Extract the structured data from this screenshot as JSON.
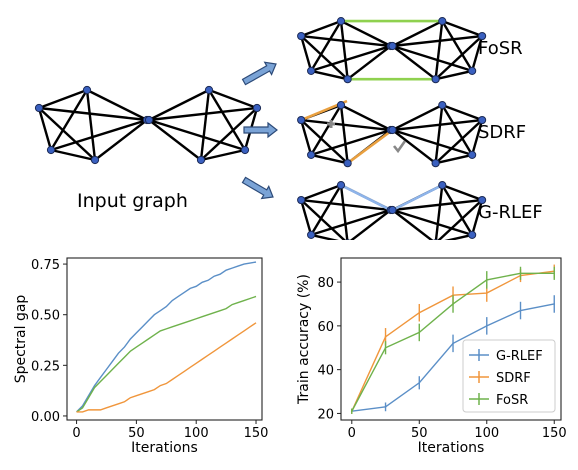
{
  "input_label": "Input graph",
  "methods": [
    {
      "key": "fosr",
      "label": "FoSR"
    },
    {
      "key": "sdrf",
      "label": "SDRF"
    },
    {
      "key": "grlef",
      "label": "G-RLEF"
    }
  ],
  "colors": {
    "blue": "#5B8FC7",
    "orange": "#F0963C",
    "green": "#6FB24C",
    "node": "#3A60C0",
    "fosr_edge": "#8FD14F",
    "sdrf_edge": "#E9A040",
    "grlef_edge": "#8EB4EA",
    "arrow": "#7AA3D6"
  },
  "chart_data": [
    {
      "type": "line",
      "xlabel": "Iterations",
      "ylabel": "Spectral gap",
      "xlim": [
        -8,
        155
      ],
      "ylim": [
        -0.02,
        0.78
      ],
      "xticks": [
        0,
        50,
        100,
        150
      ],
      "yticks": [
        0.0,
        0.25,
        0.5,
        0.75
      ],
      "xtick_labels": [
        "0",
        "50",
        "100",
        "150"
      ],
      "ytick_labels": [
        "0.00",
        "0.25",
        "0.50",
        "0.75"
      ],
      "series": [
        {
          "color_key": "blue",
          "x": [
            0,
            5,
            10,
            15,
            20,
            25,
            30,
            35,
            40,
            45,
            50,
            55,
            60,
            65,
            70,
            75,
            80,
            85,
            90,
            95,
            100,
            105,
            110,
            115,
            120,
            125,
            130,
            135,
            140,
            145,
            150
          ],
          "y": [
            0.02,
            0.05,
            0.1,
            0.15,
            0.19,
            0.23,
            0.27,
            0.31,
            0.34,
            0.38,
            0.41,
            0.44,
            0.47,
            0.5,
            0.52,
            0.54,
            0.57,
            0.59,
            0.61,
            0.63,
            0.64,
            0.66,
            0.67,
            0.69,
            0.7,
            0.72,
            0.73,
            0.74,
            0.75,
            0.755,
            0.76
          ]
        },
        {
          "color_key": "green",
          "x": [
            0,
            5,
            10,
            15,
            20,
            25,
            30,
            35,
            40,
            45,
            50,
            55,
            60,
            65,
            70,
            75,
            80,
            85,
            90,
            95,
            100,
            105,
            110,
            115,
            120,
            125,
            130,
            135,
            140,
            145,
            150
          ],
          "y": [
            0.02,
            0.04,
            0.09,
            0.14,
            0.17,
            0.2,
            0.23,
            0.26,
            0.29,
            0.32,
            0.34,
            0.36,
            0.38,
            0.4,
            0.42,
            0.43,
            0.44,
            0.45,
            0.46,
            0.47,
            0.48,
            0.49,
            0.5,
            0.51,
            0.52,
            0.53,
            0.55,
            0.56,
            0.57,
            0.58,
            0.59
          ]
        },
        {
          "color_key": "orange",
          "x": [
            0,
            5,
            10,
            15,
            20,
            25,
            30,
            35,
            40,
            45,
            50,
            55,
            60,
            65,
            70,
            75,
            80,
            85,
            90,
            95,
            100,
            105,
            110,
            115,
            120,
            125,
            130,
            135,
            140,
            145,
            150
          ],
          "y": [
            0.02,
            0.02,
            0.03,
            0.03,
            0.03,
            0.04,
            0.05,
            0.06,
            0.07,
            0.09,
            0.1,
            0.11,
            0.12,
            0.13,
            0.15,
            0.16,
            0.18,
            0.2,
            0.22,
            0.24,
            0.26,
            0.28,
            0.3,
            0.32,
            0.34,
            0.36,
            0.38,
            0.4,
            0.42,
            0.44,
            0.46
          ]
        }
      ]
    },
    {
      "type": "line",
      "xlabel": "Iterations",
      "ylabel": "Train accuracy (%)",
      "xlim": [
        -8,
        155
      ],
      "ylim": [
        17,
        91
      ],
      "xticks": [
        0,
        50,
        100,
        150
      ],
      "yticks": [
        20,
        40,
        60,
        80
      ],
      "xtick_labels": [
        "0",
        "50",
        "100",
        "150"
      ],
      "ytick_labels": [
        "20",
        "40",
        "60",
        "80"
      ],
      "legend_position": "lower-right",
      "series": [
        {
          "name": "G-RLEF",
          "color_key": "blue",
          "x": [
            0,
            25,
            50,
            75,
            100,
            125,
            150
          ],
          "y": [
            21,
            23,
            34,
            52,
            60,
            67,
            70
          ],
          "err": [
            1.2,
            2,
            3,
            4,
            4,
            4,
            4
          ]
        },
        {
          "name": "SDRF",
          "color_key": "orange",
          "x": [
            0,
            25,
            50,
            75,
            100,
            125,
            150
          ],
          "y": [
            21,
            55,
            66,
            74,
            75,
            83,
            85
          ],
          "err": [
            1.2,
            4,
            4,
            4,
            4,
            3,
            3
          ]
        },
        {
          "name": "FoSR",
          "color_key": "green",
          "x": [
            0,
            25,
            50,
            75,
            100,
            125,
            150
          ],
          "y": [
            21,
            50,
            57,
            70,
            81,
            84,
            84
          ],
          "err": [
            1.2,
            3,
            4,
            4,
            4,
            3,
            3
          ]
        }
      ]
    }
  ]
}
